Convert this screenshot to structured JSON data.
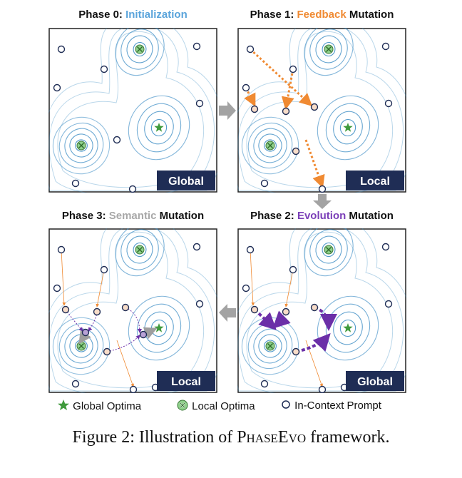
{
  "phases": [
    {
      "prefix": "Phase 0: ",
      "highlight": "Initialization",
      "suffix": "",
      "highlight_color": "#5aa4db",
      "badge": "Global"
    },
    {
      "prefix": "Phase 1: ",
      "highlight": "Feedback",
      "suffix": " Mutation",
      "highlight_color": "#f08a32",
      "badge": "Local"
    },
    {
      "prefix": "Phase 2: ",
      "highlight": "Evolution",
      "suffix": " Mutation",
      "highlight_color": "#7b3fb8",
      "badge": "Global"
    },
    {
      "prefix": "Phase 3: ",
      "highlight": "Semantic",
      "suffix": " Mutation",
      "highlight_color": "#a8a8a8",
      "badge": "Local"
    }
  ],
  "legend": {
    "global": "Global Optima",
    "local": "Local Optima",
    "prompt": "In-Context Prompt"
  },
  "caption": {
    "prefix": "Figure 2: Illustration of ",
    "name": "PhaseEvo",
    "suffix": " framework."
  },
  "colors": {
    "contour": "#3a8cc4",
    "badge_bg": "#1f2d55",
    "optimum_green": "#3f9a3c",
    "arrow_gray": "#9e9e9e",
    "feedback": "#f08a32",
    "evolution": "#6b2fa8",
    "prompt_fill": "#ffffff",
    "prompt_highlight_fill": "#f7dcc8",
    "semantic_node_fill": "#b9a2d6"
  }
}
